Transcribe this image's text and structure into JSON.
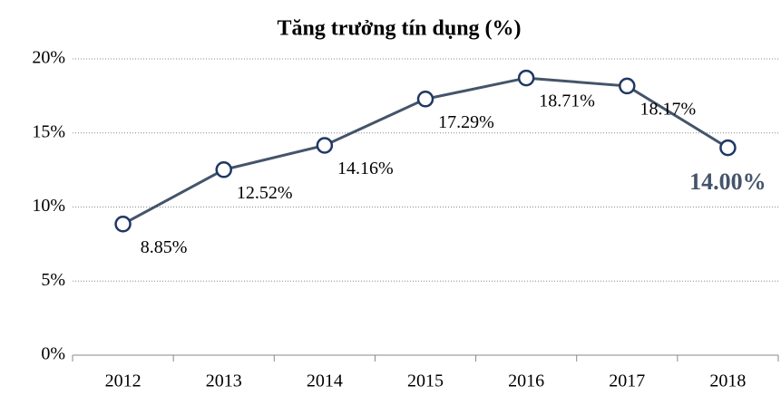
{
  "chart_data": {
    "type": "line",
    "title": "Tăng trưởng tín dụng (%)",
    "categories": [
      "2012",
      "2013",
      "2014",
      "2015",
      "2016",
      "2017",
      "2018"
    ],
    "series": [
      {
        "name": "Tăng trưởng tín dụng",
        "color": "#44546a",
        "values": [
          8.85,
          12.52,
          14.16,
          17.29,
          18.71,
          18.17,
          14.0
        ],
        "value_labels": [
          "8.85%",
          "12.52%",
          "14.16%",
          "17.29%",
          "18.71%",
          "18.17%",
          "14.00%"
        ]
      }
    ],
    "ylim": [
      0,
      20
    ],
    "yticks": [
      {
        "value": 0,
        "label": "0%"
      },
      {
        "value": 5,
        "label": "5%"
      },
      {
        "value": 10,
        "label": "10%"
      },
      {
        "value": 15,
        "label": "15%"
      },
      {
        "value": 20,
        "label": "20%"
      }
    ],
    "grid": true
  }
}
